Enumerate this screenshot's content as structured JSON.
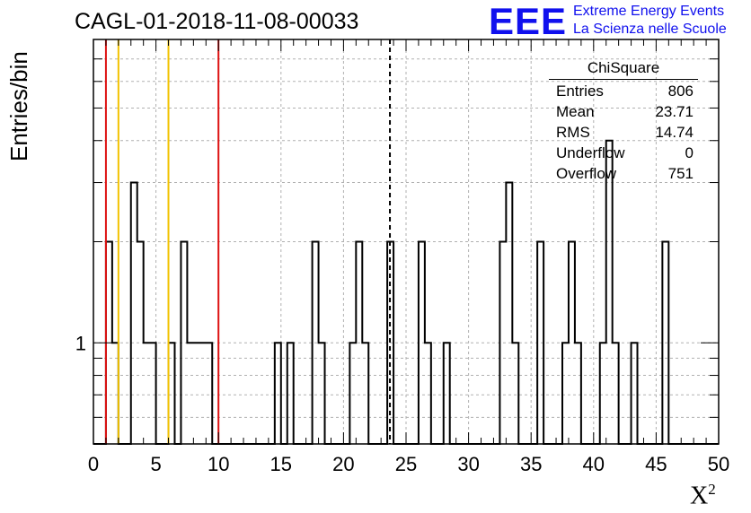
{
  "chart_data": {
    "type": "histogram",
    "title": "CAGL-01-2018-11-08-00033",
    "xlabel_base": "X",
    "xlabel_sup": "2",
    "ylabel": "Entries/bin",
    "xlim": [
      0,
      50
    ],
    "ylog": true,
    "ylim": [
      0.5,
      8
    ],
    "bin_width": 0.5,
    "x_ticks": [
      "0",
      "5",
      "10",
      "15",
      "20",
      "25",
      "30",
      "35",
      "40",
      "45",
      "50"
    ],
    "y_tick_labels": [
      {
        "value": 1,
        "label": "1"
      }
    ],
    "bins": [
      {
        "x": 1.0,
        "y": 2
      },
      {
        "x": 1.5,
        "y": 1
      },
      {
        "x": 3.0,
        "y": 3
      },
      {
        "x": 3.5,
        "y": 2
      },
      {
        "x": 4.0,
        "y": 1
      },
      {
        "x": 4.5,
        "y": 1
      },
      {
        "x": 6.0,
        "y": 1
      },
      {
        "x": 7.0,
        "y": 2
      },
      {
        "x": 7.5,
        "y": 1
      },
      {
        "x": 8.0,
        "y": 1
      },
      {
        "x": 8.5,
        "y": 1
      },
      {
        "x": 9.0,
        "y": 1
      },
      {
        "x": 14.5,
        "y": 1
      },
      {
        "x": 15.5,
        "y": 1
      },
      {
        "x": 17.5,
        "y": 2
      },
      {
        "x": 18.0,
        "y": 1
      },
      {
        "x": 20.5,
        "y": 1
      },
      {
        "x": 21.0,
        "y": 2
      },
      {
        "x": 21.5,
        "y": 1
      },
      {
        "x": 23.5,
        "y": 2
      },
      {
        "x": 26.0,
        "y": 2
      },
      {
        "x": 26.5,
        "y": 1
      },
      {
        "x": 28.0,
        "y": 1
      },
      {
        "x": 32.5,
        "y": 2
      },
      {
        "x": 33.0,
        "y": 3
      },
      {
        "x": 33.5,
        "y": 1
      },
      {
        "x": 35.5,
        "y": 2
      },
      {
        "x": 37.5,
        "y": 1
      },
      {
        "x": 38.0,
        "y": 2
      },
      {
        "x": 38.5,
        "y": 1
      },
      {
        "x": 40.5,
        "y": 1
      },
      {
        "x": 41.0,
        "y": 4
      },
      {
        "x": 41.5,
        "y": 1
      },
      {
        "x": 43.0,
        "y": 1
      },
      {
        "x": 45.5,
        "y": 2
      }
    ],
    "vertical_lines": [
      {
        "x": 1,
        "color": "#dd1111",
        "style": "solid"
      },
      {
        "x": 2,
        "color": "#f2c200",
        "style": "solid"
      },
      {
        "x": 6,
        "color": "#f2c200",
        "style": "solid"
      },
      {
        "x": 10,
        "color": "#dd1111",
        "style": "solid"
      },
      {
        "x": 23.71,
        "color": "#000000",
        "style": "dashed"
      }
    ],
    "grid": true,
    "legend": "top-right"
  },
  "stats": {
    "title": "ChiSquare",
    "rows": [
      {
        "label": "Entries",
        "value": "806"
      },
      {
        "label": "Mean",
        "value": "23.71"
      },
      {
        "label": "RMS",
        "value": "14.74"
      },
      {
        "label": "Underflow",
        "value": "0"
      },
      {
        "label": "Overflow",
        "value": "751"
      }
    ]
  },
  "logo": {
    "mark": "EEE",
    "line1": "Extreme Energy Events",
    "line2": "La Scienza nelle Scuole"
  }
}
